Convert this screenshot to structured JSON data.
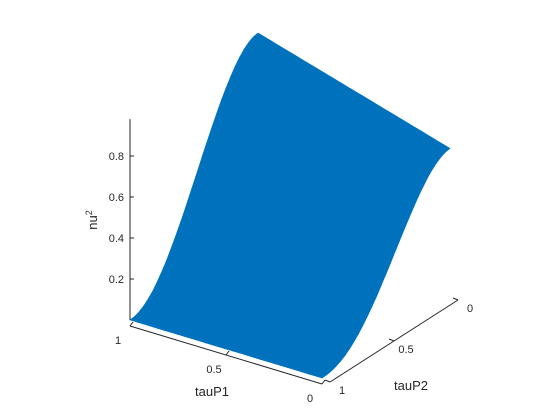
{
  "chart_data": {
    "type": "surface",
    "title": "",
    "xlabel": "tauP1",
    "ylabel": "tauP2",
    "zlabel": "nu",
    "zlabel_superscript": "2",
    "xlim": [
      0,
      1
    ],
    "ylim": [
      0,
      1
    ],
    "zlim": [
      0,
      1
    ],
    "x_ticks": [
      {
        "value": 1,
        "label": "1"
      },
      {
        "value": 0.5,
        "label": "0.5"
      },
      {
        "value": 0,
        "label": "0"
      }
    ],
    "y_ticks": [
      {
        "value": 1,
        "label": "1"
      },
      {
        "value": 0.5,
        "label": "0.5"
      },
      {
        "value": 0,
        "label": "0"
      }
    ],
    "z_ticks": [
      {
        "value": 0.2,
        "label": "0.2"
      },
      {
        "value": 0.4,
        "label": "0.4"
      },
      {
        "value": 0.6,
        "label": "0.6"
      },
      {
        "value": 0.8,
        "label": "0.8"
      }
    ],
    "surface": {
      "description_edges": {
        "x1_edge": [
          {
            "y": 1,
            "z": 0.0
          },
          {
            "y": 0.75,
            "z": 0.12
          },
          {
            "y": 0.5,
            "z": 0.45
          },
          {
            "y": 0.25,
            "z": 0.78
          },
          {
            "y": 0,
            "z": 1.0
          }
        ],
        "x0_edge": [
          {
            "y": 1,
            "z": 0.0
          },
          {
            "y": 0.75,
            "z": 0.05
          },
          {
            "y": 0.5,
            "z": 0.25
          },
          {
            "y": 0.25,
            "z": 0.55
          },
          {
            "y": 0,
            "z": 0.72
          }
        ],
        "y1_edge": [
          {
            "x": 1,
            "z": 0.0
          },
          {
            "x": 0.5,
            "z": 0.02
          },
          {
            "x": 0,
            "z": 0.0
          }
        ],
        "y0_edge": [
          {
            "x": 1,
            "z": 1.0
          },
          {
            "x": 0.5,
            "z": 0.9
          },
          {
            "x": 0,
            "z": 0.72
          }
        ]
      },
      "color": "#0072BD"
    },
    "grid": false,
    "legend": "none"
  }
}
